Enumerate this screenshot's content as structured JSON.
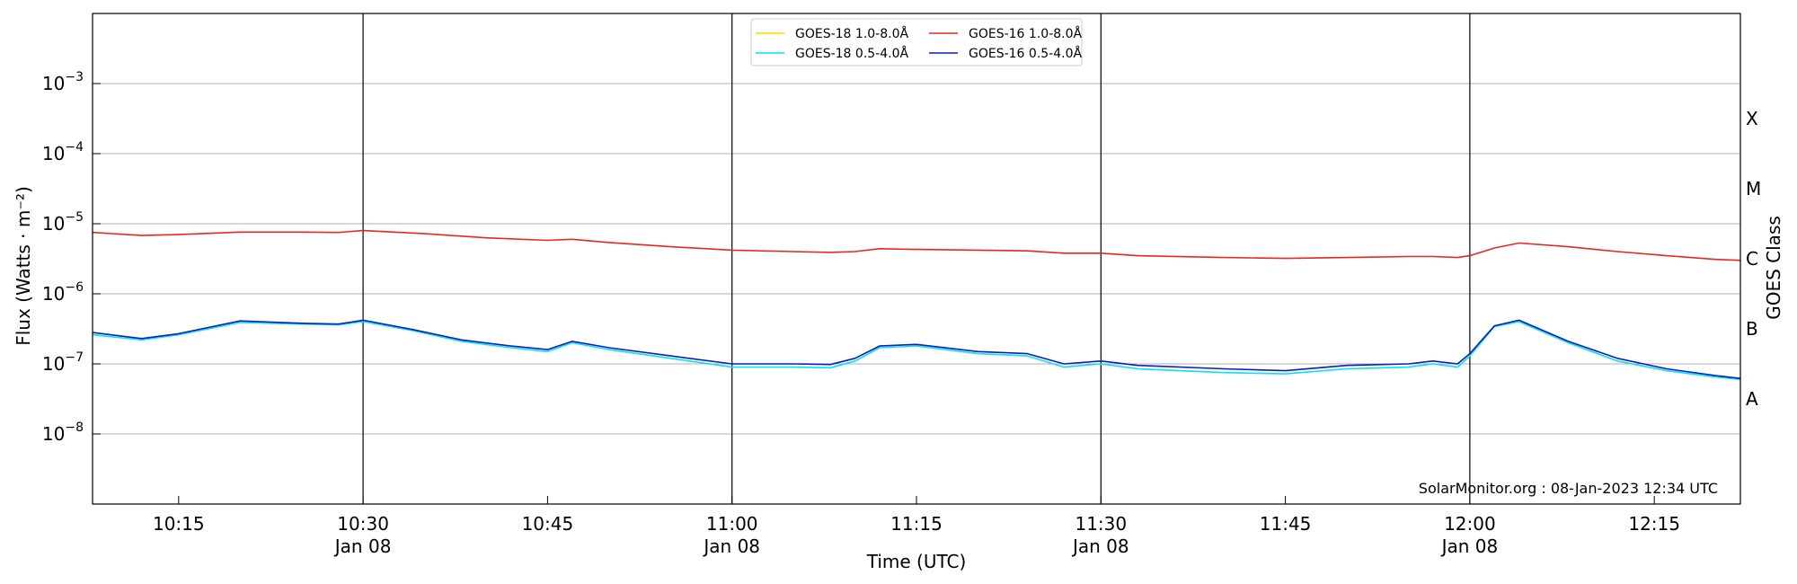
{
  "chart_data": {
    "type": "line",
    "title": "",
    "xlabel": "Time (UTC)",
    "ylabel": "Flux (Watts · m⁻²)",
    "ylabel_right": "GOES Class",
    "y_scale": "log",
    "ylim": [
      1e-09,
      0.01
    ],
    "xlim": [
      "10:08",
      "12:22"
    ],
    "y_ticks": [
      {
        "value": 1e-08,
        "base": "10",
        "exp": "−8"
      },
      {
        "value": 1e-07,
        "base": "10",
        "exp": "−7"
      },
      {
        "value": 1e-06,
        "base": "10",
        "exp": "−6"
      },
      {
        "value": 1e-05,
        "base": "10",
        "exp": "−5"
      },
      {
        "value": 0.0001,
        "base": "10",
        "exp": "−4"
      },
      {
        "value": 0.001,
        "base": "10",
        "exp": "−3"
      }
    ],
    "x_ticks": [
      {
        "time": "10:15",
        "label": "10:15",
        "sub": ""
      },
      {
        "time": "10:30",
        "label": "10:30",
        "sub": "Jan 08"
      },
      {
        "time": "10:45",
        "label": "10:45",
        "sub": ""
      },
      {
        "time": "11:00",
        "label": "11:00",
        "sub": "Jan 08"
      },
      {
        "time": "11:15",
        "label": "11:15",
        "sub": ""
      },
      {
        "time": "11:30",
        "label": "11:30",
        "sub": "Jan 08"
      },
      {
        "time": "11:45",
        "label": "11:45",
        "sub": ""
      },
      {
        "time": "12:00",
        "label": "12:00",
        "sub": "Jan 08"
      },
      {
        "time": "12:15",
        "label": "12:15",
        "sub": ""
      }
    ],
    "vertical_lines": [
      "10:30",
      "11:00",
      "11:30",
      "12:00"
    ],
    "goes_classes": [
      {
        "label": "A",
        "value": 3.16e-08
      },
      {
        "label": "B",
        "value": 3.16e-07
      },
      {
        "label": "C",
        "value": 3.16e-06
      },
      {
        "label": "M",
        "value": 3.16e-05
      },
      {
        "label": "X",
        "value": 0.000316
      }
    ],
    "grid": true,
    "legend_position": "top-center",
    "annotation": "SolarMonitor.org : 08-Jan-2023 12:34 UTC",
    "series": [
      {
        "name": "GOES-18 1.0-8.0Å",
        "color": "#ffd700",
        "x": [],
        "y": []
      },
      {
        "name": "GOES-18 0.5-4.0Å",
        "color": "#00e5ee",
        "x": [
          "10:08",
          "10:12",
          "10:15",
          "10:20",
          "10:25",
          "10:28",
          "10:30",
          "10:34",
          "10:38",
          "10:42",
          "10:45",
          "10:47",
          "10:50",
          "10:55",
          "11:00",
          "11:05",
          "11:08",
          "11:10",
          "11:12",
          "11:15",
          "11:20",
          "11:24",
          "11:27",
          "11:30",
          "11:33",
          "11:40",
          "11:45",
          "11:50",
          "11:55",
          "11:57",
          "11:59",
          "12:00",
          "12:02",
          "12:04",
          "12:08",
          "12:12",
          "12:16",
          "12:20",
          "12:22"
        ],
        "y": [
          2.6e-07,
          2.2e-07,
          2.6e-07,
          3.9e-07,
          3.7e-07,
          3.6e-07,
          4e-07,
          3e-07,
          2.1e-07,
          1.7e-07,
          1.5e-07,
          2e-07,
          1.6e-07,
          1.2e-07,
          9e-08,
          9e-08,
          8.8e-08,
          1.1e-07,
          1.7e-07,
          1.8e-07,
          1.4e-07,
          1.3e-07,
          9e-08,
          1e-07,
          8.5e-08,
          7.5e-08,
          7.2e-08,
          8.5e-08,
          9e-08,
          1e-07,
          9e-08,
          1.3e-07,
          3.4e-07,
          4e-07,
          2e-07,
          1.1e-07,
          8e-08,
          6.5e-08,
          6e-08
        ]
      },
      {
        "name": "GOES-16 1.0-8.0Å",
        "color": "#e8281c",
        "x": [
          "10:08",
          "10:12",
          "10:15",
          "10:20",
          "10:25",
          "10:28",
          "10:30",
          "10:35",
          "10:40",
          "10:45",
          "10:47",
          "10:50",
          "10:55",
          "11:00",
          "11:05",
          "11:08",
          "11:10",
          "11:12",
          "11:15",
          "11:20",
          "11:24",
          "11:27",
          "11:29",
          "11:30",
          "11:33",
          "11:40",
          "11:45",
          "11:50",
          "11:55",
          "11:57",
          "11:59",
          "12:00",
          "12:02",
          "12:04",
          "12:08",
          "12:12",
          "12:16",
          "12:20",
          "12:22"
        ],
        "y": [
          7.5e-06,
          6.8e-06,
          7e-06,
          7.6e-06,
          7.6e-06,
          7.5e-06,
          8e-06,
          7.2e-06,
          6.3e-06,
          5.8e-06,
          6e-06,
          5.4e-06,
          4.7e-06,
          4.2e-06,
          4e-06,
          3.9e-06,
          4e-06,
          4.4e-06,
          4.3e-06,
          4.2e-06,
          4.1e-06,
          3.8e-06,
          3.8e-06,
          3.8e-06,
          3.5e-06,
          3.3e-06,
          3.2e-06,
          3.3e-06,
          3.4e-06,
          3.4e-06,
          3.3e-06,
          3.5e-06,
          4.5e-06,
          5.3e-06,
          4.7e-06,
          4e-06,
          3.5e-06,
          3.1e-06,
          3e-06
        ]
      },
      {
        "name": "GOES-16 0.5-4.0Å",
        "color": "#0a1bc8",
        "x": [
          "10:08",
          "10:12",
          "10:15",
          "10:20",
          "10:25",
          "10:28",
          "10:30",
          "10:34",
          "10:38",
          "10:42",
          "10:45",
          "10:47",
          "10:50",
          "10:55",
          "11:00",
          "11:05",
          "11:08",
          "11:10",
          "11:12",
          "11:15",
          "11:20",
          "11:24",
          "11:27",
          "11:30",
          "11:33",
          "11:40",
          "11:45",
          "11:50",
          "11:55",
          "11:57",
          "11:59",
          "12:00",
          "12:02",
          "12:04",
          "12:08",
          "12:12",
          "12:16",
          "12:20",
          "12:22"
        ],
        "y": [
          2.8e-07,
          2.3e-07,
          2.7e-07,
          4.1e-07,
          3.8e-07,
          3.7e-07,
          4.2e-07,
          3.1e-07,
          2.2e-07,
          1.8e-07,
          1.6e-07,
          2.1e-07,
          1.7e-07,
          1.3e-07,
          1e-07,
          1e-07,
          9.8e-08,
          1.2e-07,
          1.8e-07,
          1.9e-07,
          1.5e-07,
          1.4e-07,
          1e-07,
          1.1e-07,
          9.5e-08,
          8.5e-08,
          8e-08,
          9.5e-08,
          1e-07,
          1.1e-07,
          1e-07,
          1.4e-07,
          3.5e-07,
          4.2e-07,
          2.1e-07,
          1.2e-07,
          8.5e-08,
          6.8e-08,
          6.2e-08
        ]
      }
    ]
  }
}
